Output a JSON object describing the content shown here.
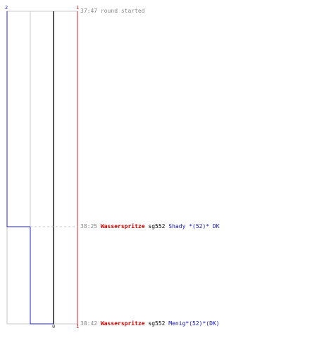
{
  "colors": {
    "team_blue": "#2222cc",
    "team_red": "#dd2222",
    "team_gray": "#555555",
    "grid": "#c8c8c8"
  },
  "counts": {
    "blue_top": "2",
    "red_top": "1",
    "dark_bottom": "0",
    "red_bottom": "1"
  },
  "events": [
    {
      "time": "37:47",
      "message": "round started"
    },
    {
      "time": "38:25",
      "killer": "Wasserspritze",
      "weapon": "sg552",
      "victim": "Shady *(52)* DK"
    },
    {
      "time": "38:42",
      "killer": "Wasserspritze",
      "weapon": "sg552",
      "victim": "Menig*(52)*(DK)"
    }
  ]
}
